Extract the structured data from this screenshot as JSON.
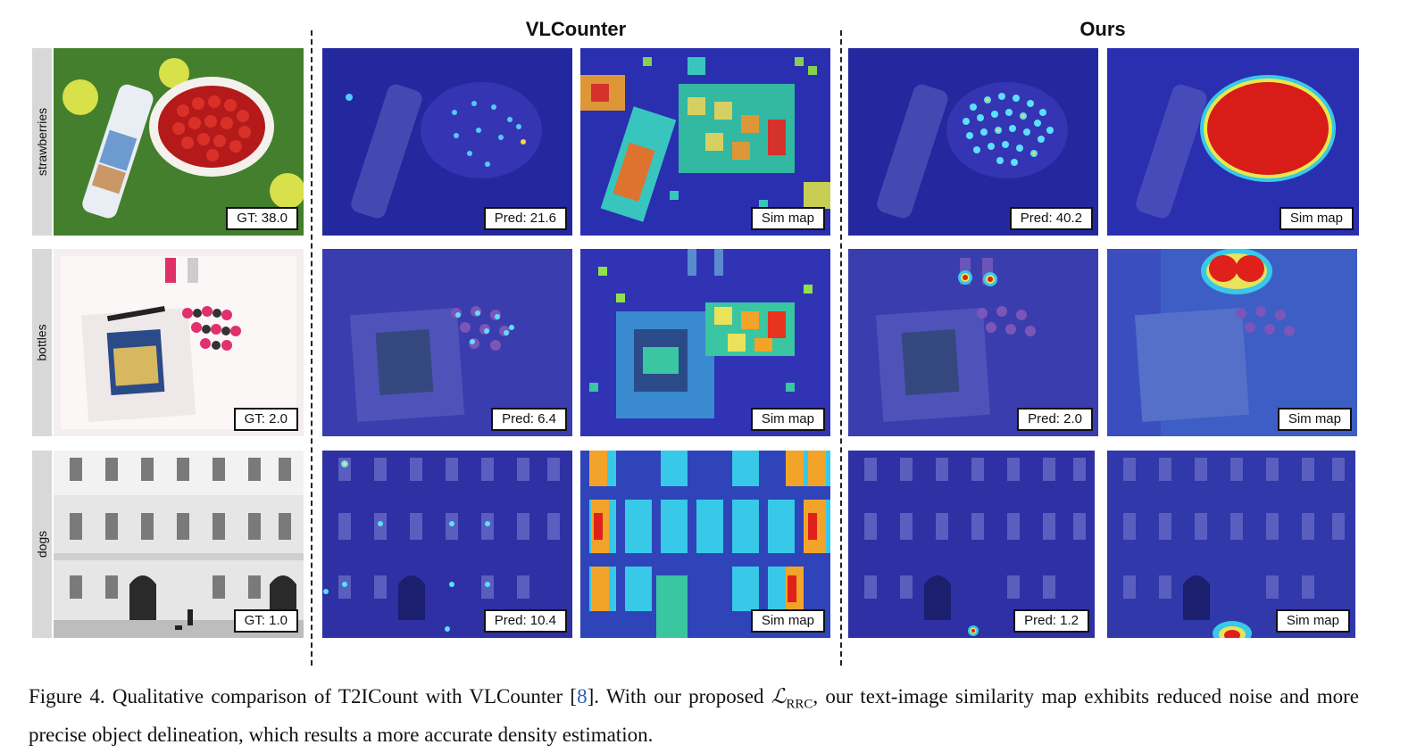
{
  "columns": {
    "vlcounter": "VLCounter",
    "ours": "Ours"
  },
  "rows": [
    {
      "label": "strawberries",
      "gt": "GT: 38.0",
      "vl_pred": "Pred: 21.6",
      "vl_sim": "Sim map",
      "ours_pred": "Pred: 40.2",
      "ours_sim": "Sim map"
    },
    {
      "label": "bottles",
      "gt": "GT: 2.0",
      "vl_pred": "Pred: 6.4",
      "vl_sim": "Sim map",
      "ours_pred": "Pred: 2.0",
      "ours_sim": "Sim map"
    },
    {
      "label": "dogs",
      "gt": "GT: 1.0",
      "vl_pred": "Pred: 10.4",
      "vl_sim": "Sim map",
      "ours_pred": "Pred: 1.2",
      "ours_sim": "Sim map"
    }
  ],
  "caption": {
    "lead": "Figure 4.  Qualitative comparison of T2ICount with VLCounter [",
    "ref": "8",
    "mid": "].  With our proposed ",
    "loss_symbol": "ℒ",
    "loss_sub": "RRC",
    "tail": ", our text-image similarity map exhibits reduced noise and more precise object delineation, which results a more accurate density estimation."
  },
  "colors": {
    "heatmap_base": "#2a2fb0",
    "heatmap_hot": "#e0201a",
    "grass": "#3f7a2a",
    "caption_ref": "#2a5db0"
  }
}
